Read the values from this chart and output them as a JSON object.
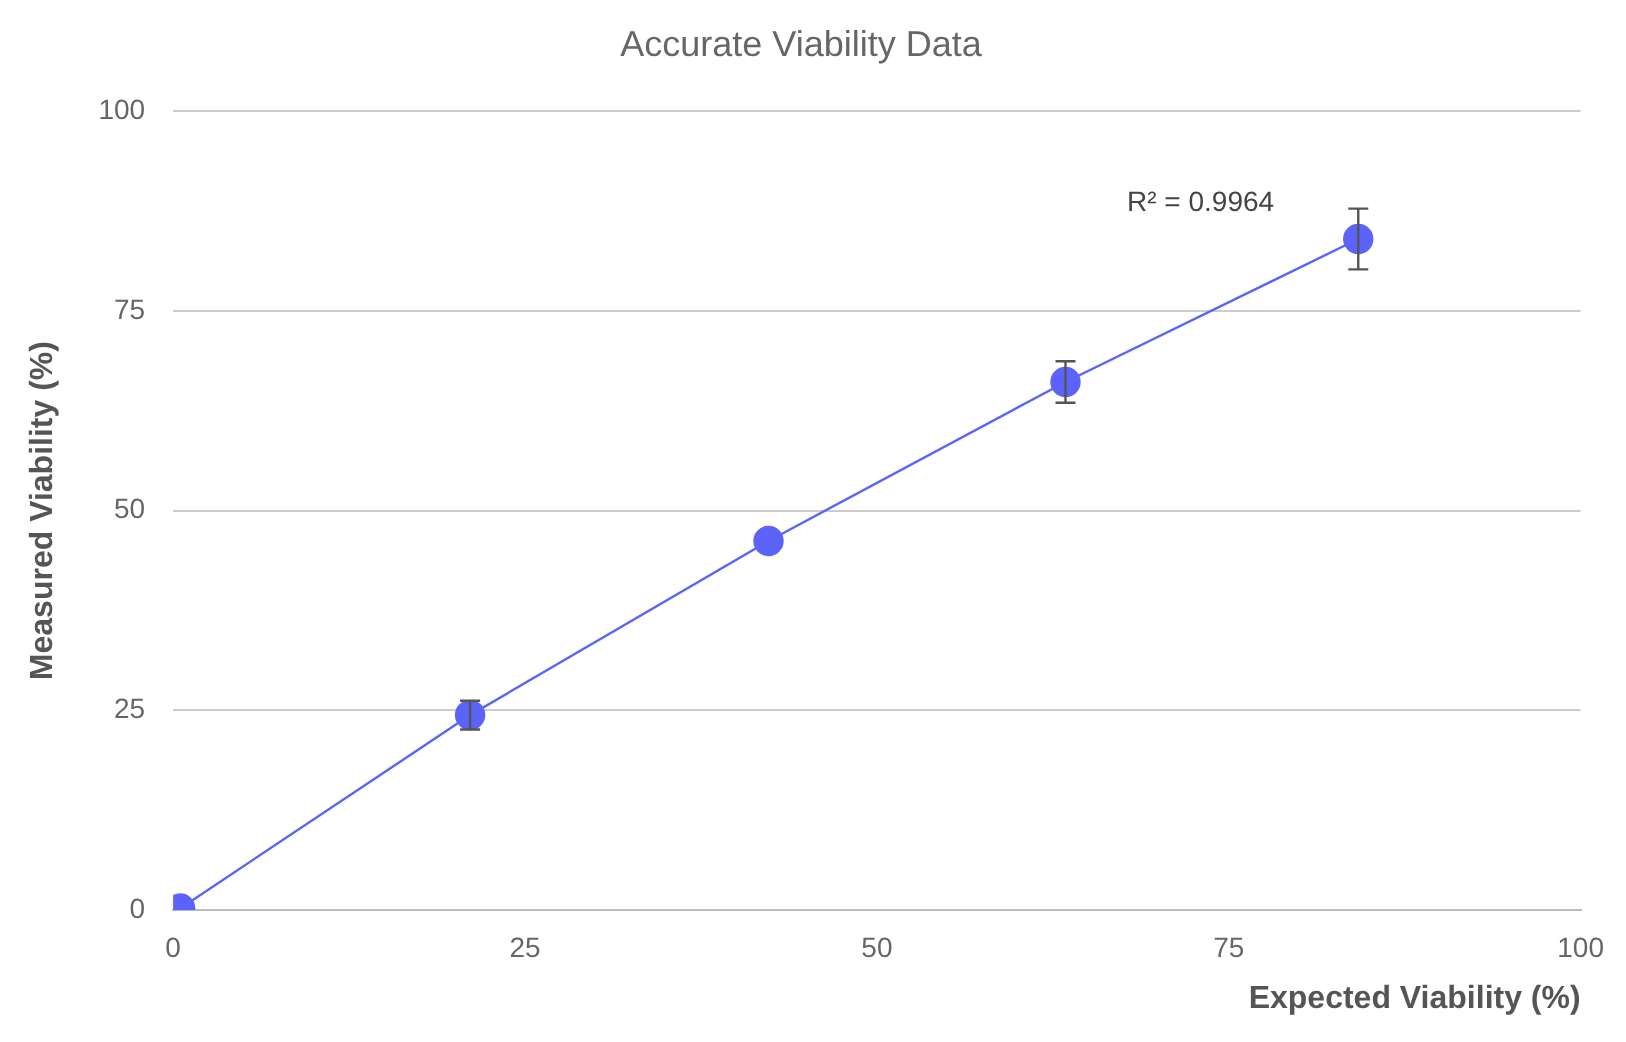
{
  "chart_data": {
    "type": "line",
    "title": "Accurate Viability Data",
    "xlabel": "Expected Viability (%)",
    "ylabel": "Measured Viability (%)",
    "x": [
      0.5,
      21.1,
      42.3,
      63.4,
      84.2
    ],
    "series": [
      {
        "color": "#5b63fb",
        "values": [
          0.2,
          24.4,
          46.2,
          66.1,
          84.0
        ],
        "errors": [
          null,
          1.8,
          null,
          2.6,
          3.8
        ]
      }
    ],
    "xlim": [
      0,
      100
    ],
    "xticks": [
      0,
      25,
      50,
      75,
      100
    ],
    "ylim": [
      0,
      100
    ],
    "yticks": [
      0,
      25,
      50,
      75,
      100
    ],
    "grid": "y",
    "legend": false,
    "marker": "circle",
    "line_style": "solid",
    "annotations": [
      "R² = 0.9964"
    ]
  }
}
